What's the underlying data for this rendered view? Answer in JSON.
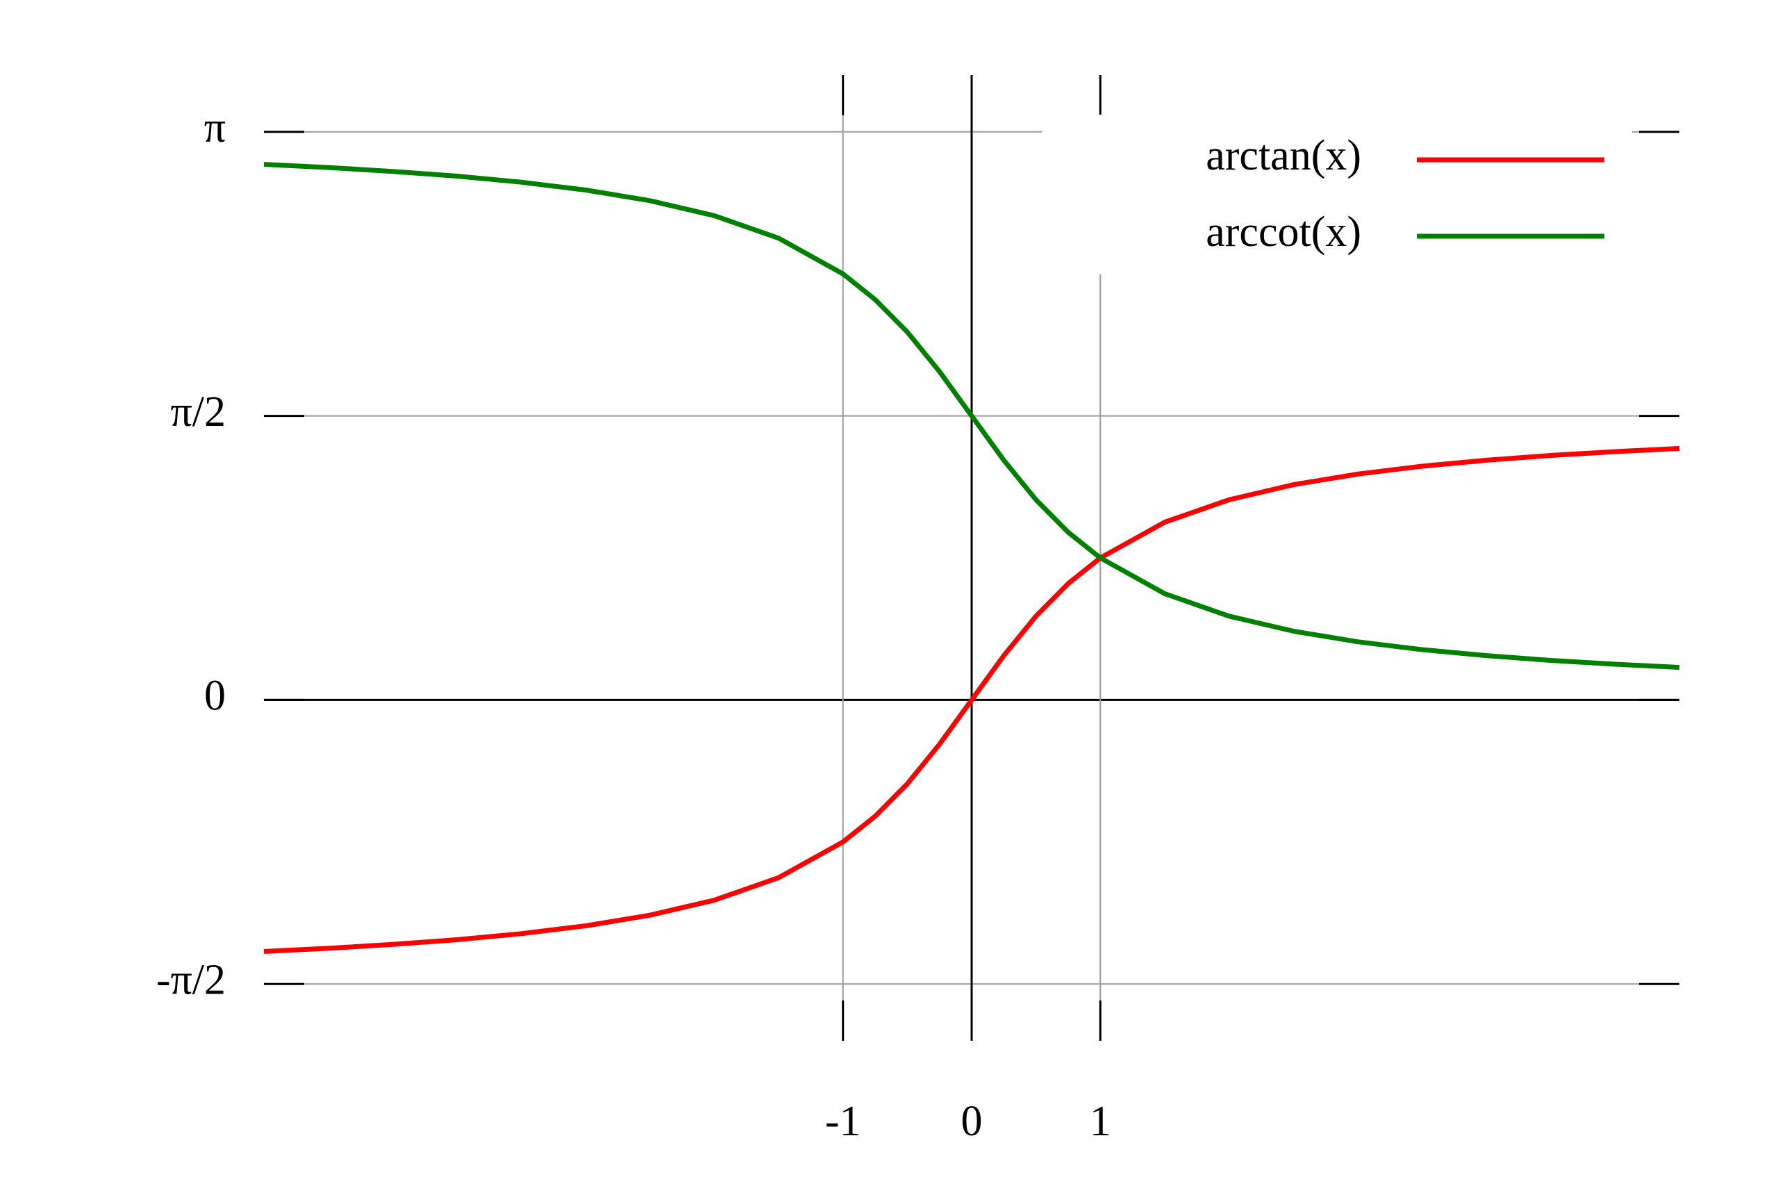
{
  "chart_data": {
    "type": "line",
    "title": "",
    "xlabel": "",
    "ylabel": "",
    "xlim": [
      -5.5,
      5.5
    ],
    "ylim": [
      -1.8849556,
      3.4557519
    ],
    "grid": true,
    "legend_position": "top-right",
    "x_ticks": [
      {
        "value": -1,
        "label": "-1"
      },
      {
        "value": 0,
        "label": "0"
      },
      {
        "value": 1,
        "label": "1"
      }
    ],
    "y_ticks": [
      {
        "value": 3.14159265,
        "label": "π"
      },
      {
        "value": 1.57079633,
        "label": "π/2"
      },
      {
        "value": 0,
        "label": "0"
      },
      {
        "value": -1.57079633,
        "label": "-π/2"
      }
    ],
    "series": [
      {
        "name": "arctan(x)",
        "color": "#ff0000",
        "x": [
          -5.5,
          -5,
          -4.5,
          -4,
          -3.5,
          -3,
          -2.5,
          -2,
          -1.5,
          -1,
          -0.75,
          -0.5,
          -0.25,
          0,
          0.25,
          0.5,
          0.75,
          1,
          1.5,
          2,
          2.5,
          3,
          3.5,
          4,
          4.5,
          5,
          5.5
        ],
        "y": [
          -1.3909,
          -1.3734,
          -1.3521,
          -1.3258,
          -1.2925,
          -1.249,
          -1.1903,
          -1.1071,
          -0.9828,
          -0.7854,
          -0.6435,
          -0.4636,
          -0.245,
          0,
          0.245,
          0.4636,
          0.6435,
          0.7854,
          0.9828,
          1.1071,
          1.1903,
          1.249,
          1.2925,
          1.3258,
          1.3521,
          1.3734,
          1.3909
        ]
      },
      {
        "name": "arccot(x)",
        "color": "#008000",
        "x": [
          -5.5,
          -5,
          -4.5,
          -4,
          -3.5,
          -3,
          -2.5,
          -2,
          -1.5,
          -1,
          -0.75,
          -0.5,
          -0.25,
          0,
          0.25,
          0.5,
          0.75,
          1,
          1.5,
          2,
          2.5,
          3,
          3.5,
          4,
          4.5,
          5,
          5.5
        ],
        "y": [
          2.9617,
          2.9442,
          2.9229,
          2.8966,
          2.8633,
          2.8198,
          2.7611,
          2.6779,
          2.5536,
          2.3562,
          2.2143,
          2.0344,
          1.8158,
          1.5708,
          1.3258,
          1.1071,
          0.9273,
          0.7854,
          0.588,
          0.4636,
          0.3805,
          0.3218,
          0.2783,
          0.245,
          0.2187,
          0.1974,
          0.1799
        ]
      }
    ]
  }
}
